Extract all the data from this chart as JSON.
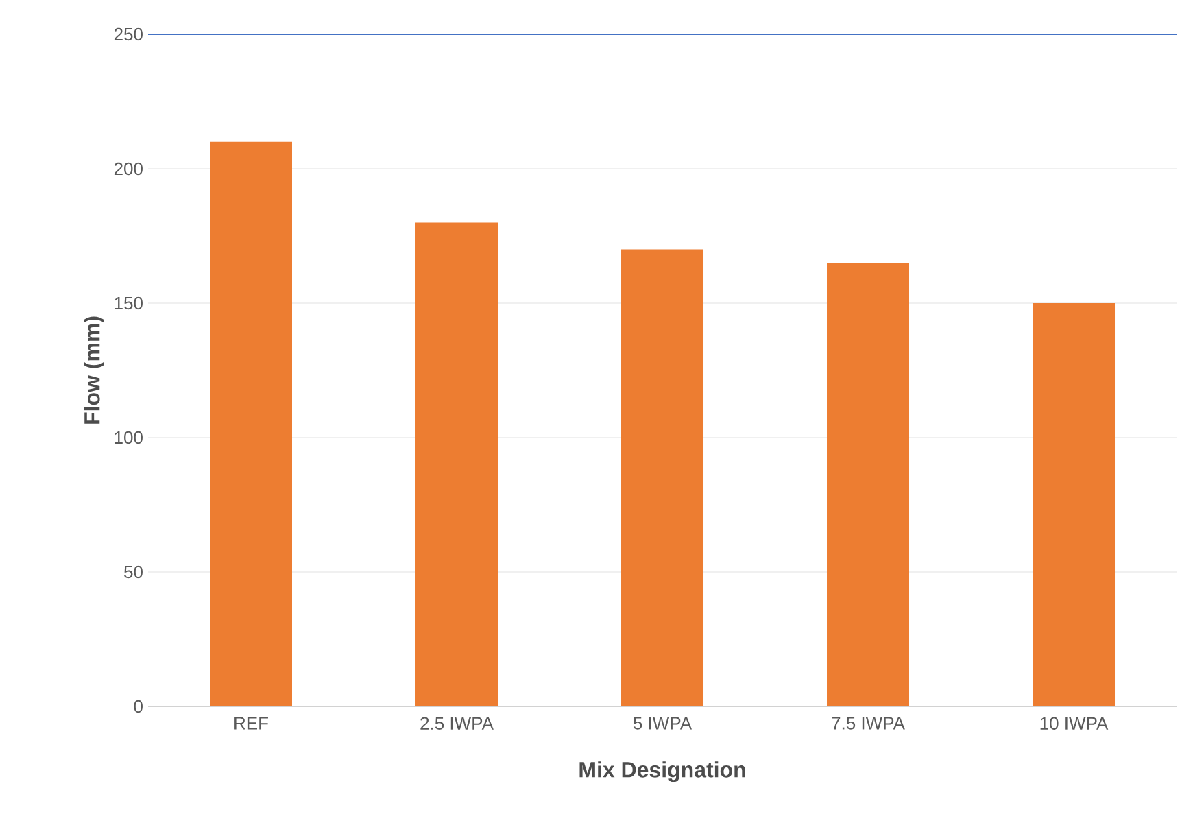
{
  "chart_data": {
    "type": "bar",
    "xlabel": "Mix Designation",
    "ylabel": "Flow (mm)",
    "categories": [
      "REF",
      "2.5 IWPA",
      "5 IWPA",
      "7.5 IWPA",
      "10 IWPA"
    ],
    "values": [
      210,
      180,
      170,
      165,
      150
    ],
    "color": "#ed7d31",
    "ylim": [
      0,
      250
    ],
    "yticks": [
      0,
      50,
      100,
      150,
      200,
      250
    ],
    "grid": "y",
    "ref_lines": [
      {
        "axis": "y",
        "value": 250,
        "color": "#4472c4"
      }
    ]
  }
}
